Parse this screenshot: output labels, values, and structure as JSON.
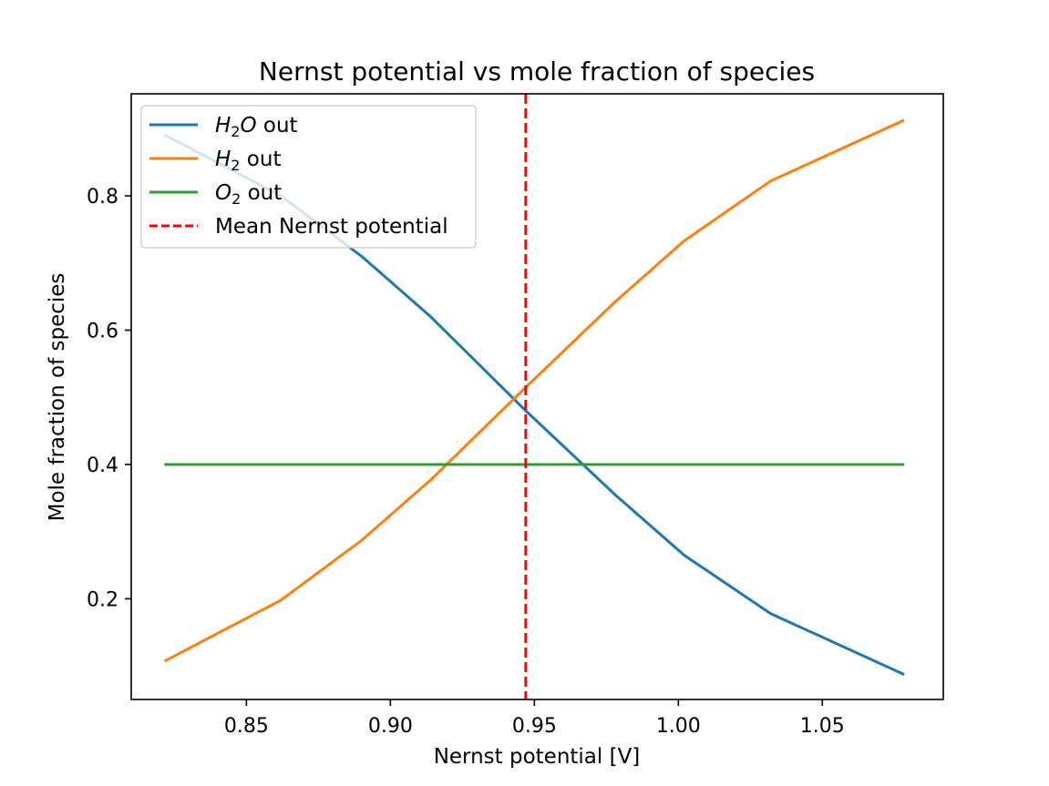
{
  "chart_data": {
    "type": "line",
    "title": "Nernst potential vs mole fraction of species",
    "xlabel": "Nernst potential [V]",
    "ylabel": "Mole fraction of species",
    "xlim": [
      0.81,
      1.092
    ],
    "ylim": [
      0.05,
      0.952
    ],
    "xticks": [
      0.85,
      0.9,
      0.95,
      1.0,
      1.05
    ],
    "xtick_labels": [
      "0.85",
      "0.90",
      "0.95",
      "1.00",
      "1.05"
    ],
    "yticks": [
      0.2,
      0.4,
      0.6,
      0.8
    ],
    "ytick_labels": [
      "0.2",
      "0.4",
      "0.6",
      "0.8"
    ],
    "grid": false,
    "legend_position": "top-left",
    "series": [
      {
        "name": "H2O out",
        "legend_parts": [
          [
            "H",
            "i"
          ],
          [
            "2",
            "sub"
          ],
          [
            "O",
            "i"
          ],
          [
            " out",
            "n"
          ]
        ],
        "color": "#1f77b4",
        "x": [
          0.822,
          0.862,
          0.89,
          0.914,
          0.947,
          0.978,
          1.002,
          1.032,
          1.078
        ],
        "y": [
          0.89,
          0.8,
          0.71,
          0.62,
          0.48,
          0.355,
          0.265,
          0.178,
          0.088
        ]
      },
      {
        "name": "H2 out",
        "legend_parts": [
          [
            "H",
            "i"
          ],
          [
            "2",
            "sub"
          ],
          [
            " out",
            "n"
          ]
        ],
        "color": "#ff7f0e",
        "x": [
          0.822,
          0.862,
          0.89,
          0.914,
          0.947,
          0.978,
          1.002,
          1.032,
          1.078
        ],
        "y": [
          0.108,
          0.198,
          0.287,
          0.377,
          0.515,
          0.642,
          0.733,
          0.822,
          0.912
        ]
      },
      {
        "name": "O2 out",
        "legend_parts": [
          [
            "O",
            "i"
          ],
          [
            "2",
            "sub"
          ],
          [
            " out",
            "n"
          ]
        ],
        "color": "#2ca02c",
        "x": [
          0.822,
          1.078
        ],
        "y": [
          0.4,
          0.4
        ]
      }
    ],
    "vline": {
      "name": "Mean Nernst potential",
      "x": 0.947,
      "color": "#ff0000",
      "style": "dashed"
    }
  }
}
